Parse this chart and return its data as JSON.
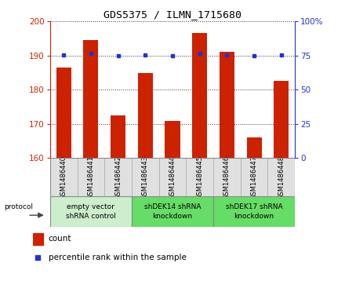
{
  "title": "GDS5375 / ILMN_1715680",
  "samples": [
    "GSM1486440",
    "GSM1486441",
    "GSM1486442",
    "GSM1486443",
    "GSM1486444",
    "GSM1486445",
    "GSM1486446",
    "GSM1486447",
    "GSM1486448"
  ],
  "counts": [
    186.5,
    194.5,
    172.5,
    185.0,
    171.0,
    196.5,
    191.0,
    166.0,
    182.5
  ],
  "percentile_ranks": [
    75.5,
    76.5,
    75.0,
    75.5,
    75.0,
    76.5,
    75.5,
    75.0,
    75.5
  ],
  "ylim_left": [
    160,
    200
  ],
  "ylim_right": [
    0,
    100
  ],
  "yticks_left": [
    160,
    170,
    180,
    190,
    200
  ],
  "yticks_right": [
    0,
    25,
    50,
    75,
    100
  ],
  "bar_color": "#cc2200",
  "dot_color": "#2233cc",
  "background_color": "#ffffff",
  "grid_color": "#000000",
  "groups": [
    {
      "label": "empty vector\nshRNA control",
      "start": 0,
      "end": 3,
      "color": "#cceecc"
    },
    {
      "label": "shDEK14 shRNA\nknockdown",
      "start": 3,
      "end": 6,
      "color": "#66dd66"
    },
    {
      "label": "shDEK17 shRNA\nknockdown",
      "start": 6,
      "end": 9,
      "color": "#66dd66"
    }
  ],
  "legend_count_label": "count",
  "legend_pct_label": "percentile rank within the sample",
  "protocol_label": "protocol"
}
